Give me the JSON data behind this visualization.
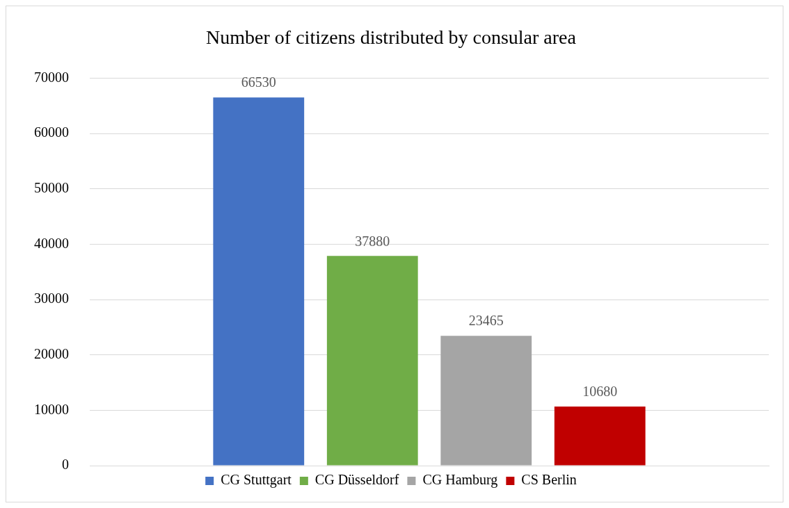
{
  "chart_data": {
    "type": "bar",
    "title": "Number of citizens distributed by consular area",
    "categories": [
      null
    ],
    "series": [
      {
        "name": "CG Stuttgart",
        "color": "#4472c4",
        "values": [
          66530
        ]
      },
      {
        "name": "CG Düsseldorf",
        "color": "#70ad47",
        "values": [
          37880
        ]
      },
      {
        "name": "CG Hamburg",
        "color": "#a5a5a5",
        "values": [
          23465
        ]
      },
      {
        "name": "CS Berlin",
        "color": "#c00000",
        "values": [
          10680
        ]
      }
    ],
    "ylim": [
      0,
      70000
    ],
    "yticks": [
      0,
      10000,
      20000,
      30000,
      40000,
      50000,
      60000,
      70000
    ],
    "grid": "y",
    "legend": "bottom",
    "data_labels": true
  }
}
